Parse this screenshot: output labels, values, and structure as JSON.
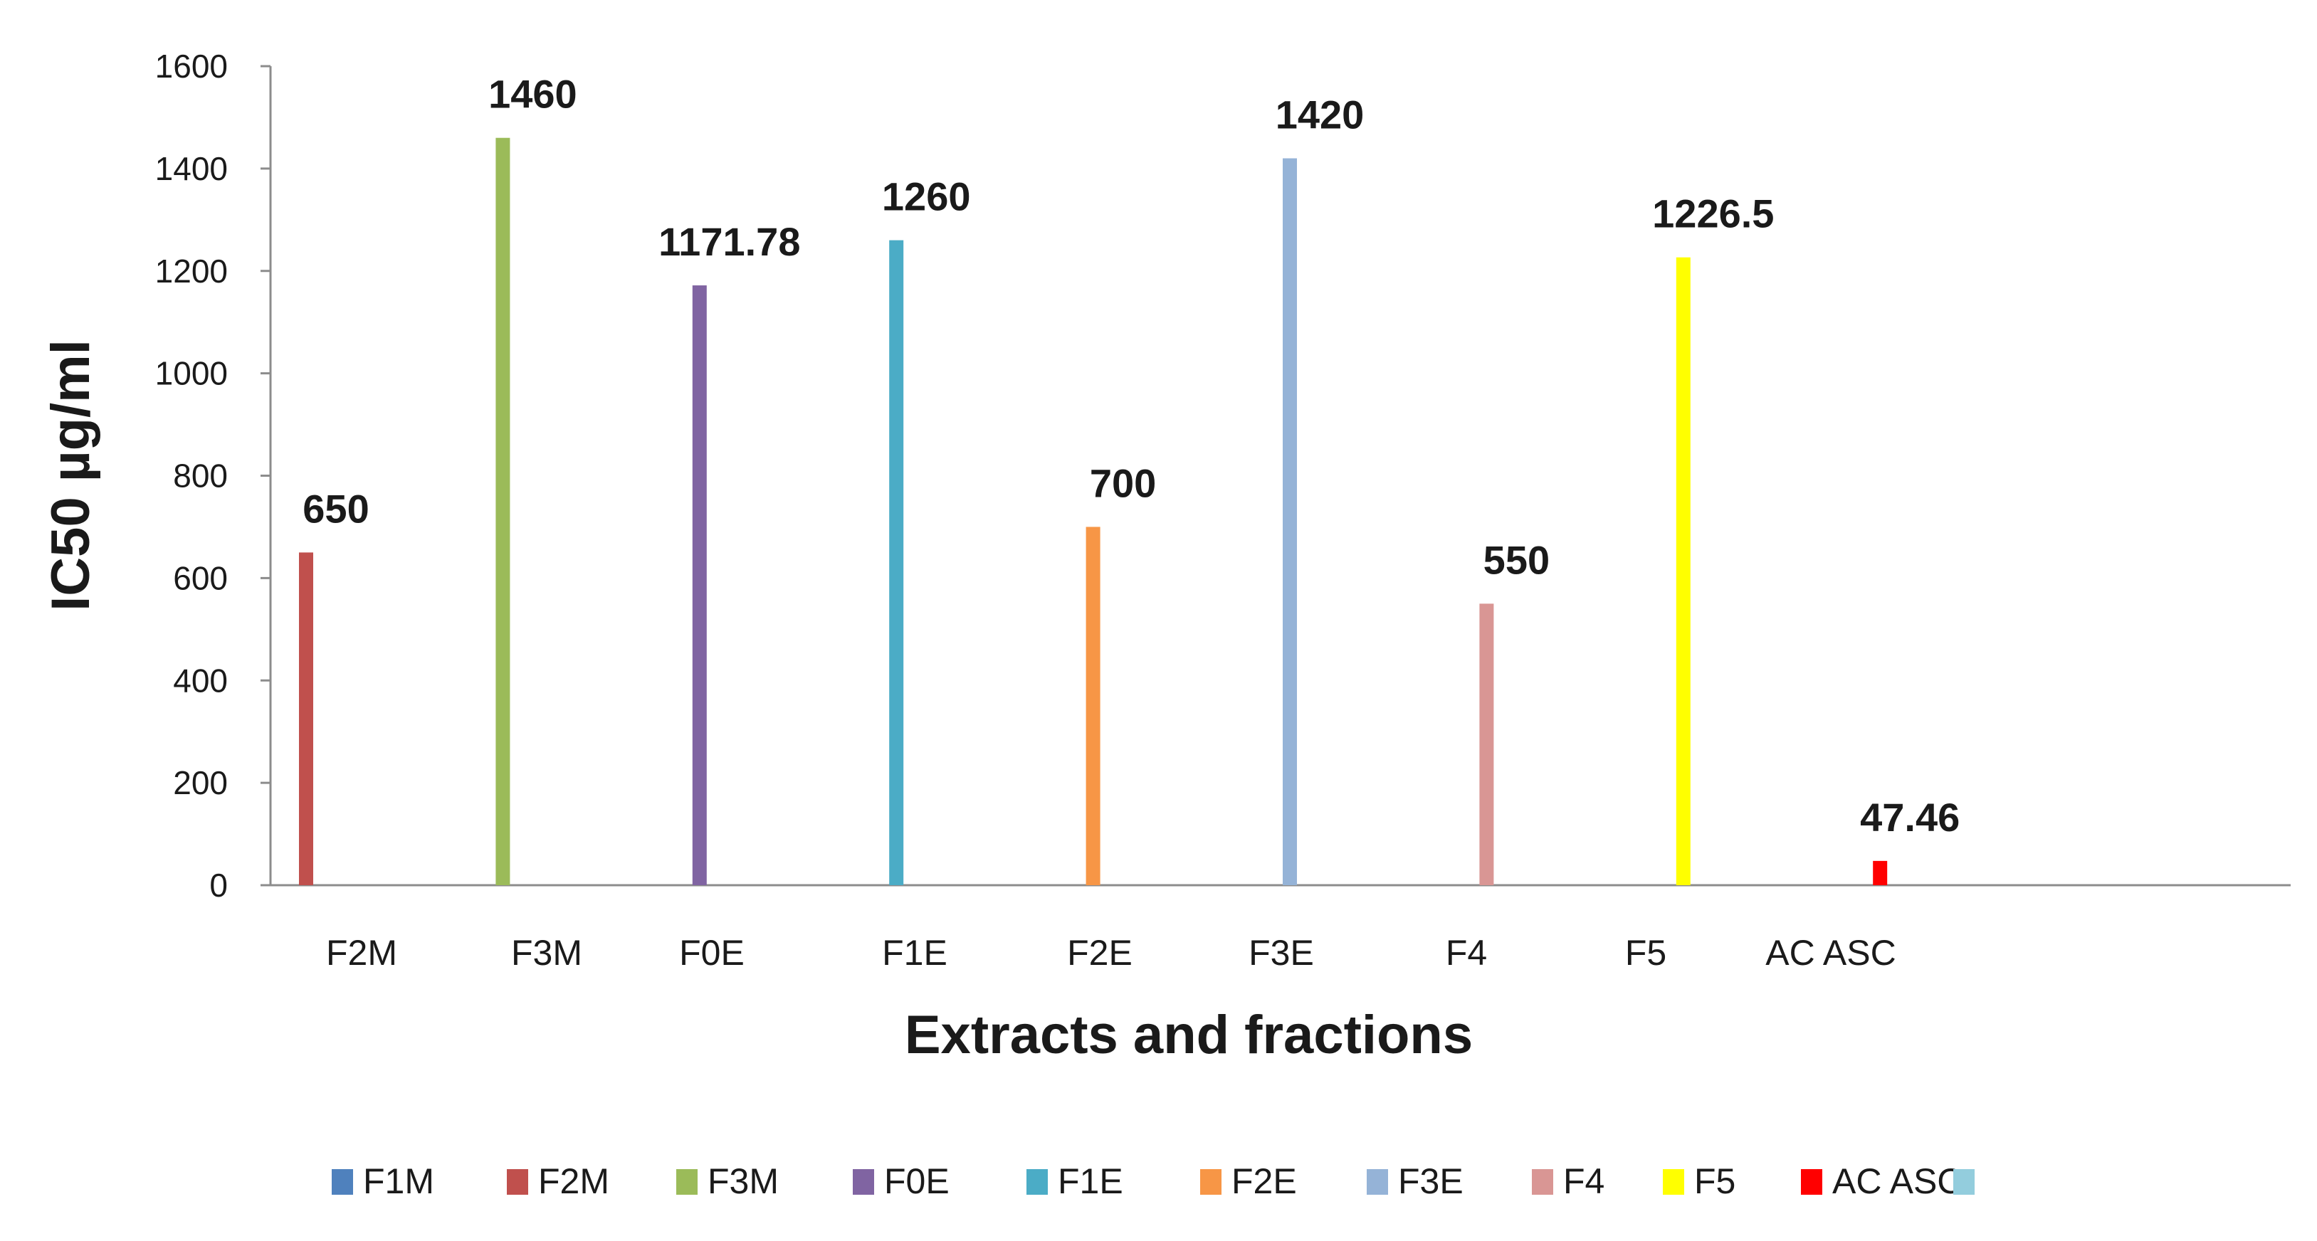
{
  "chart_data": {
    "type": "bar",
    "title": "",
    "xlabel": "Extracts and fractions",
    "ylabel": "IC50 µg/ml",
    "ylim": [
      0,
      1600
    ],
    "yticks": [
      0,
      200,
      400,
      600,
      800,
      1000,
      1200,
      1400,
      1600
    ],
    "ytick_labels": [
      "0",
      "200",
      "400",
      "600",
      "800",
      "1000",
      "1200",
      "1400",
      "1600"
    ],
    "grid": false,
    "legend_position": "bottom",
    "categories": [
      "F2M",
      "F3M",
      "F0E",
      "F1E",
      "F2E",
      "F3E",
      "F4",
      "F5",
      "AC ASC"
    ],
    "series": [
      {
        "name": "F1M",
        "color": "#4F81BD",
        "values": [
          null,
          null,
          null,
          null,
          null,
          null,
          null,
          null,
          null
        ]
      },
      {
        "name": "F2M",
        "color": "#C0504D",
        "values": [
          650,
          null,
          null,
          null,
          null,
          null,
          null,
          null,
          null
        ]
      },
      {
        "name": "F3M",
        "color": "#9BBB59",
        "values": [
          null,
          1460,
          null,
          null,
          null,
          null,
          null,
          null,
          null
        ]
      },
      {
        "name": "F0E",
        "color": "#8064A2",
        "values": [
          null,
          null,
          1171.78,
          null,
          null,
          null,
          null,
          null,
          null
        ]
      },
      {
        "name": "F1E",
        "color": "#4BACC6",
        "values": [
          null,
          null,
          null,
          1260,
          null,
          null,
          null,
          null,
          null
        ]
      },
      {
        "name": "F2E",
        "color": "#F79646",
        "values": [
          null,
          null,
          null,
          null,
          700,
          null,
          null,
          null,
          null
        ]
      },
      {
        "name": "F3E",
        "color": "#95B3D7",
        "values": [
          null,
          null,
          null,
          null,
          null,
          1420,
          null,
          null,
          null
        ]
      },
      {
        "name": "F4",
        "color": "#D99694",
        "values": [
          null,
          null,
          null,
          null,
          null,
          null,
          550,
          null,
          null
        ]
      },
      {
        "name": "F5",
        "color": "#FFFF00",
        "values": [
          null,
          null,
          null,
          null,
          null,
          null,
          null,
          1226.5,
          null
        ]
      },
      {
        "name": "AC ASC",
        "color": "#FF0000",
        "values": [
          null,
          null,
          null,
          null,
          null,
          null,
          null,
          null,
          47.46
        ]
      },
      {
        "name": "",
        "color": "#93CDDD",
        "values": [
          null,
          null,
          null,
          null,
          null,
          null,
          null,
          null,
          null
        ]
      }
    ],
    "data_labels": [
      "650",
      "1460",
      "1171.78",
      "1260",
      "700",
      "1420",
      "550",
      "1226.5",
      "47.46"
    ]
  }
}
